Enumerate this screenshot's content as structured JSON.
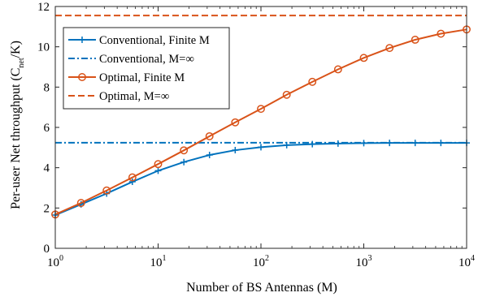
{
  "chart_data": {
    "type": "line",
    "xlabel": "Number of BS Antennas (M)",
    "ylabel_parts": [
      "Per-user Net throughput (C",
      "net",
      "/K)"
    ],
    "xscale": "log",
    "xlim": [
      1,
      10000
    ],
    "ylim": [
      0,
      12
    ],
    "yticks": [
      0,
      2,
      4,
      6,
      8,
      10,
      12
    ],
    "xticks": [
      {
        "value": 1,
        "base": "10",
        "exp": "0"
      },
      {
        "value": 10,
        "base": "10",
        "exp": "1"
      },
      {
        "value": 100,
        "base": "10",
        "exp": "2"
      },
      {
        "value": 1000,
        "base": "10",
        "exp": "3"
      },
      {
        "value": 10000,
        "base": "10",
        "exp": "4"
      }
    ],
    "grid": false,
    "legend_position": "top-left",
    "colors": {
      "conventional": "#0072BD",
      "optimal": "#D95319"
    },
    "series": [
      {
        "name": "Conventional, Finite M",
        "style": "solid",
        "marker": "plus",
        "color": "#0072BD",
        "x": [
          1,
          1.78,
          3.16,
          5.62,
          10,
          17.8,
          31.6,
          56.2,
          100,
          178,
          316,
          562,
          1000,
          1780,
          3160,
          5620,
          10000
        ],
        "y": [
          1.65,
          2.18,
          2.72,
          3.3,
          3.85,
          4.28,
          4.63,
          4.87,
          5.02,
          5.12,
          5.17,
          5.2,
          5.22,
          5.23,
          5.23,
          5.23,
          5.23
        ]
      },
      {
        "name": "Conventional, M=∞",
        "style": "dashdot",
        "marker": "none",
        "color": "#0072BD",
        "x": [
          1,
          10000
        ],
        "y": [
          5.24,
          5.24
        ]
      },
      {
        "name": "Optimal, Finite M",
        "style": "solid",
        "marker": "circle",
        "color": "#D95319",
        "x": [
          1,
          1.78,
          3.16,
          5.62,
          10,
          17.8,
          31.6,
          56.2,
          100,
          178,
          316,
          562,
          1000,
          1780,
          3160,
          5620,
          10000
        ],
        "y": [
          1.68,
          2.25,
          2.87,
          3.52,
          4.18,
          4.86,
          5.56,
          6.25,
          6.92,
          7.62,
          8.26,
          8.88,
          9.45,
          9.94,
          10.35,
          10.65,
          10.86
        ]
      },
      {
        "name": "Optimal, M=∞",
        "style": "dashed",
        "marker": "none",
        "color": "#D95319",
        "x": [
          1,
          10000
        ],
        "y": [
          11.55,
          11.55
        ]
      }
    ]
  }
}
